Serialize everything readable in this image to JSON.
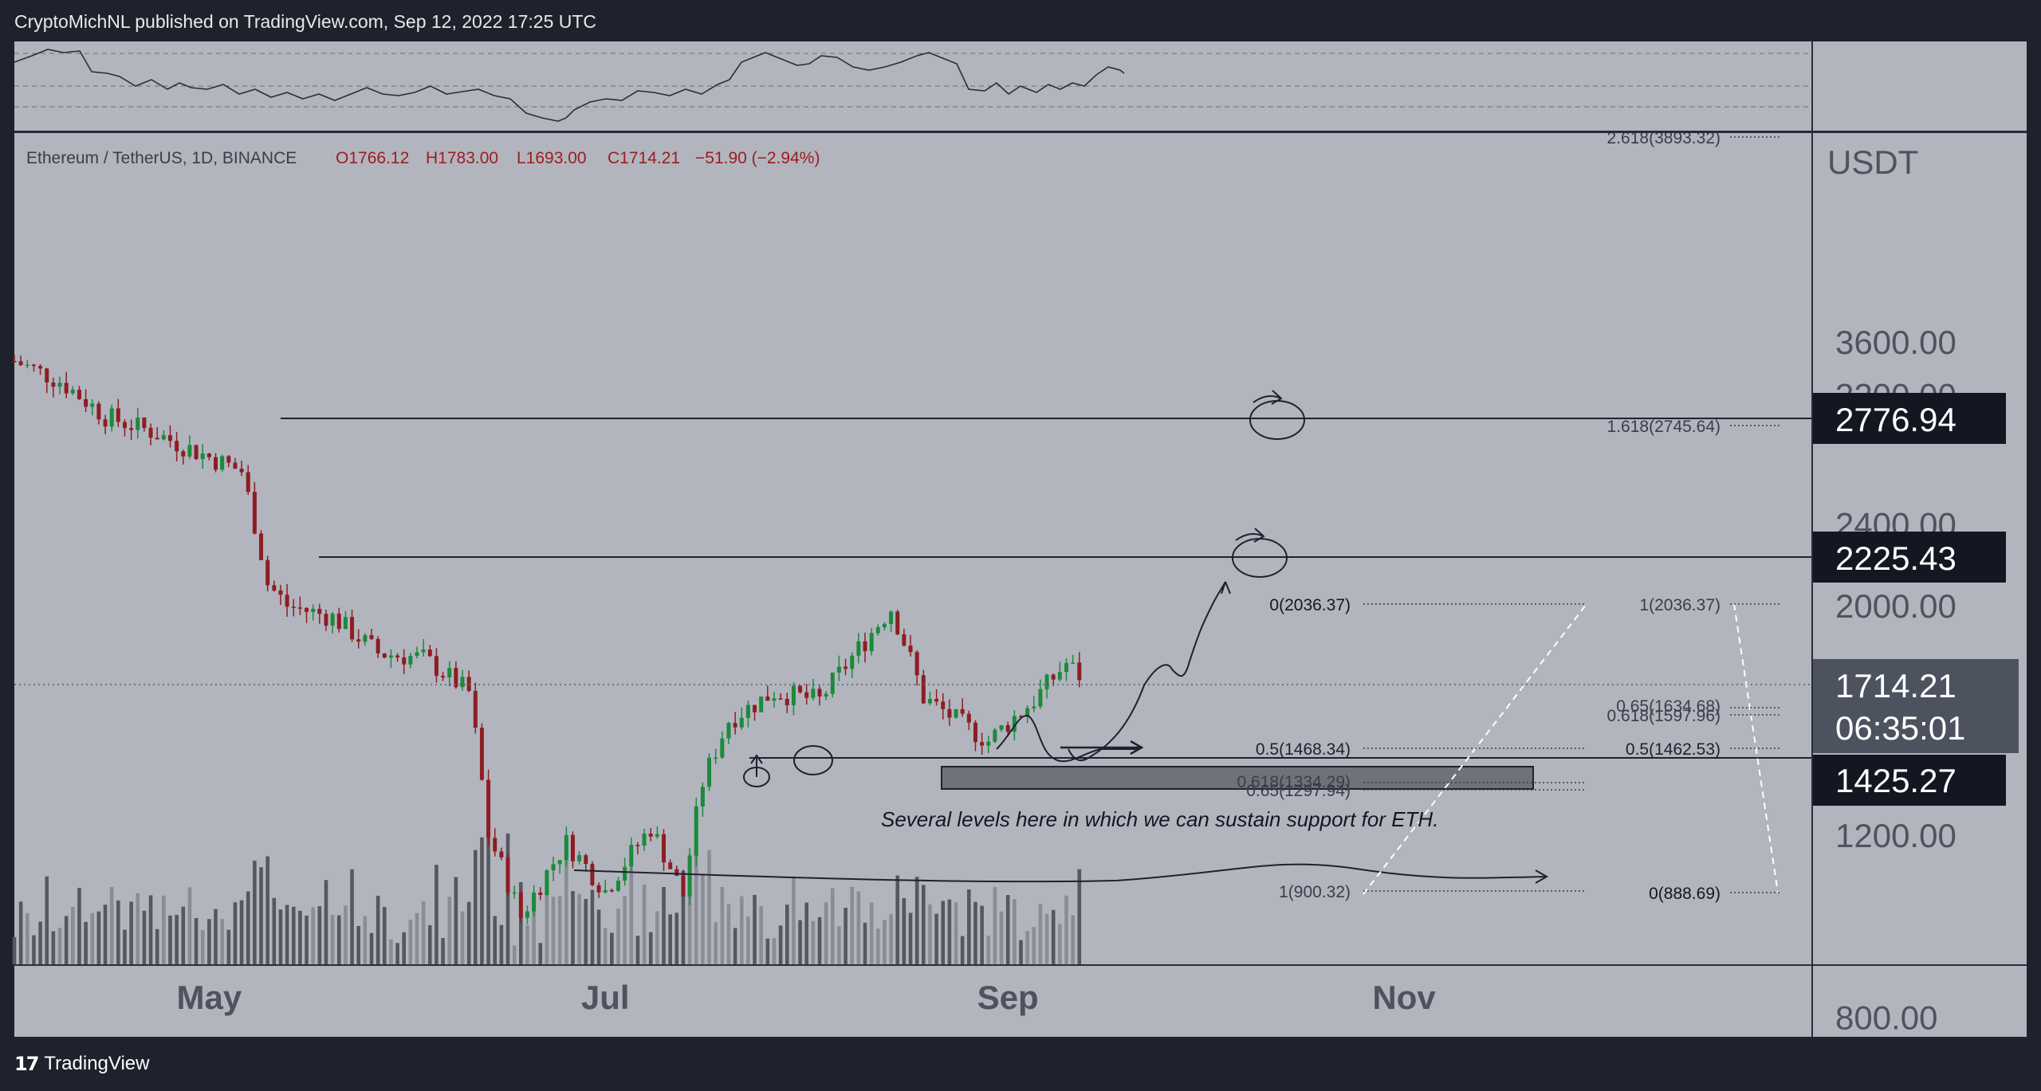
{
  "header": {
    "publisher_text": "CryptoMichNL published on TradingView.com, Sep 12, 2022 17:25 UTC"
  },
  "symbol_line": {
    "name": "Ethereum / TetherUS, 1D, BINANCE",
    "open": "O1766.12",
    "high": "H1783.00",
    "low": "L1693.00",
    "close": "C1714.21",
    "change": "−51.90 (−2.94%)"
  },
  "chart_data": {
    "type": "candlestick",
    "symbol": "Ethereum / TetherUS",
    "interval": "1D",
    "exchange": "BINANCE",
    "currency_label": "USDT",
    "x_tick_labels": [
      "May",
      "Jul",
      "Sep",
      "Nov"
    ],
    "y_tick_labels": [
      "3600.00",
      "3200.00",
      "2400.00",
      "2000.00",
      "1200.00",
      "800.00"
    ],
    "y_tick_values": [
      3600,
      3200,
      2400,
      2000,
      1200,
      800
    ],
    "ylim": [
      650,
      3900
    ],
    "scale": "log",
    "price_series_approx": [
      [
        "2022-04-01",
        3450
      ],
      [
        "2022-04-08",
        3300
      ],
      [
        "2022-04-15",
        3050
      ],
      [
        "2022-04-22",
        2950
      ],
      [
        "2022-04-29",
        2820
      ],
      [
        "2022-05-06",
        2700
      ],
      [
        "2022-05-10",
        2100
      ],
      [
        "2022-05-13",
        2000
      ],
      [
        "2022-05-20",
        1950
      ],
      [
        "2022-05-27",
        1800
      ],
      [
        "2022-06-03",
        1780
      ],
      [
        "2022-06-10",
        1650
      ],
      [
        "2022-06-13",
        1200
      ],
      [
        "2022-06-18",
        1000
      ],
      [
        "2022-06-25",
        1180
      ],
      [
        "2022-07-01",
        1060
      ],
      [
        "2022-07-08",
        1220
      ],
      [
        "2022-07-13",
        1050
      ],
      [
        "2022-07-16",
        1350
      ],
      [
        "2022-07-20",
        1550
      ],
      [
        "2022-07-27",
        1650
      ],
      [
        "2022-08-03",
        1620
      ],
      [
        "2022-08-10",
        1850
      ],
      [
        "2022-08-14",
        1990
      ],
      [
        "2022-08-19",
        1630
      ],
      [
        "2022-08-26",
        1520
      ],
      [
        "2022-08-29",
        1480
      ],
      [
        "2022-09-05",
        1620
      ],
      [
        "2022-09-10",
        1760
      ],
      [
        "2022-09-12",
        1714.21
      ]
    ],
    "horizontal_levels": [
      2776.94,
      2225.43,
      1425.27
    ],
    "price_labels": [
      {
        "value": "2776.94",
        "style": "dark"
      },
      {
        "value": "2225.43",
        "style": "dark"
      },
      {
        "value": "1714.21",
        "countdown": "06:35:01",
        "style": "gray"
      },
      {
        "value": "1425.27",
        "style": "dark"
      }
    ],
    "fib_labels_right": [
      "2.618(3893.32)",
      "1.618(2745.64)",
      "1(2036.37)",
      "0.65(1634.68)",
      "0.618(1597.96)",
      "0.5(1462.53)",
      "0(888.69)"
    ],
    "fib_labels_left": [
      "0(2036.37)",
      "0.5(1468.34)",
      "0.618(1334.29)",
      "0.65(1297.94)",
      "1(900.32)"
    ],
    "annotation": "Several levels here in which we can sustain support for ETH."
  },
  "colors": {
    "chart_bg": "#b2b5be",
    "up_candle": "#1b8a3c",
    "down_candle": "#8e1d22",
    "frame": "#1e222d",
    "price_label_dark": "#131722",
    "price_label_gray": "#4c525e",
    "change_red": "#9c1d20"
  },
  "footer": {
    "brand": "TradingView"
  }
}
